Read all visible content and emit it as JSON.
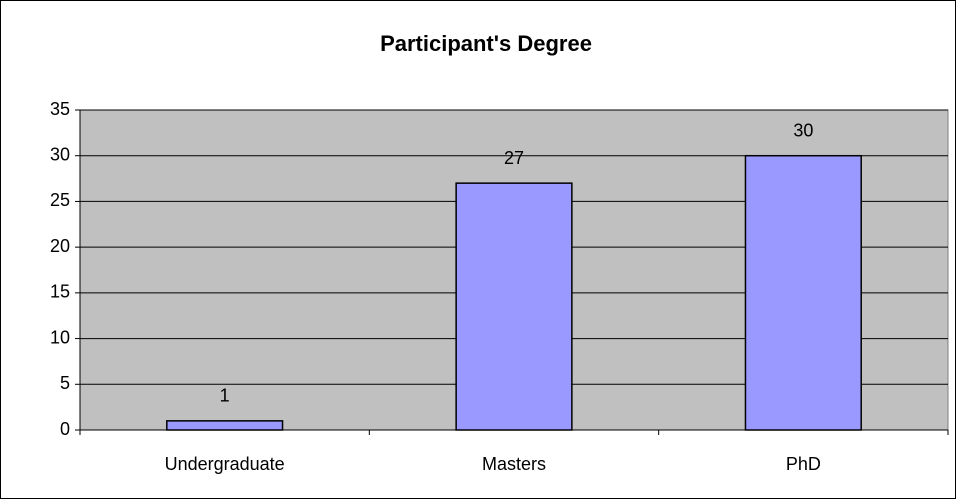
{
  "chart_data": {
    "type": "bar",
    "title": "Participant's Degree",
    "categories": [
      "Undergraduate",
      "Masters",
      "PhD"
    ],
    "values": [
      1,
      27,
      30
    ],
    "color": "#9999ff",
    "ylim": [
      0,
      35
    ],
    "yticks": [
      0,
      5,
      10,
      15,
      20,
      25,
      30,
      35
    ],
    "grid": true,
    "plot_background": "#c0c0c0"
  }
}
